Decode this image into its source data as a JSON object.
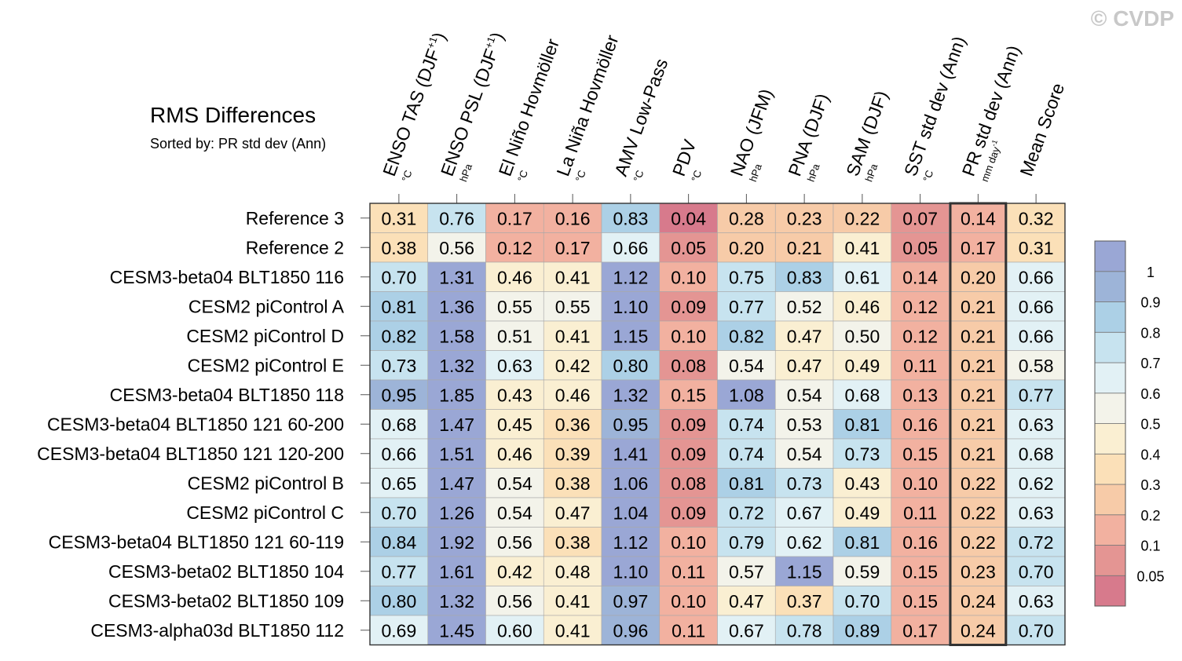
{
  "watermark": "© CVDP",
  "chart_data": {
    "type": "heatmap",
    "title": "RMS Differences",
    "subtitle": "Sorted by: PR std dev (Ann)",
    "columns": [
      {
        "label": "ENSO TAS (DJF",
        "sup": "+1",
        "close": ")",
        "unit": "°C"
      },
      {
        "label": "ENSO PSL (DJF",
        "sup": "+1",
        "close": ")",
        "unit": "hPa"
      },
      {
        "label": "El Niño Hovmöller",
        "unit": "°C"
      },
      {
        "label": "La Niña Hovmöller",
        "unit": "°C"
      },
      {
        "label": "AMV Low-Pass",
        "unit": "°C"
      },
      {
        "label": "PDV",
        "unit": "°C"
      },
      {
        "label": "NAO (JFM)",
        "unit": "hPa"
      },
      {
        "label": "PNA (DJF)",
        "unit": "hPa"
      },
      {
        "label": "SAM (DJF)",
        "unit": "hPa"
      },
      {
        "label": "SST std dev (Ann)",
        "unit": "°C"
      },
      {
        "label": "PR std dev (Ann)",
        "unit": "mm day",
        "unit_sup": "-1"
      },
      {
        "label": "Mean Score",
        "unit": ""
      }
    ],
    "sorted_column": "PR std dev (Ann)",
    "rows": [
      {
        "name": "Reference 3",
        "values": [
          0.31,
          0.76,
          0.17,
          0.16,
          0.83,
          0.04,
          0.28,
          0.23,
          0.22,
          0.07,
          0.14,
          0.32
        ]
      },
      {
        "name": "Reference 2",
        "values": [
          0.38,
          0.56,
          0.12,
          0.17,
          0.66,
          0.05,
          0.2,
          0.21,
          0.41,
          0.05,
          0.17,
          0.31
        ]
      },
      {
        "name": "CESM3-beta04 BLT1850 116",
        "values": [
          0.7,
          1.31,
          0.46,
          0.41,
          1.12,
          0.1,
          0.75,
          0.83,
          0.61,
          0.14,
          0.2,
          0.66
        ]
      },
      {
        "name": "CESM2 piControl A",
        "values": [
          0.81,
          1.36,
          0.55,
          0.55,
          1.1,
          0.09,
          0.77,
          0.52,
          0.46,
          0.12,
          0.21,
          0.66
        ]
      },
      {
        "name": "CESM2 piControl D",
        "values": [
          0.82,
          1.58,
          0.51,
          0.41,
          1.15,
          0.1,
          0.82,
          0.47,
          0.5,
          0.12,
          0.21,
          0.66
        ]
      },
      {
        "name": "CESM2 piControl E",
        "values": [
          0.73,
          1.32,
          0.63,
          0.42,
          0.8,
          0.08,
          0.54,
          0.47,
          0.49,
          0.11,
          0.21,
          0.58
        ]
      },
      {
        "name": "CESM3-beta04 BLT1850 118",
        "values": [
          0.95,
          1.85,
          0.43,
          0.46,
          1.32,
          0.15,
          1.08,
          0.54,
          0.68,
          0.13,
          0.21,
          0.77
        ]
      },
      {
        "name": "CESM3-beta04 BLT1850 121 60-200",
        "values": [
          0.68,
          1.47,
          0.45,
          0.36,
          0.95,
          0.09,
          0.74,
          0.53,
          0.81,
          0.16,
          0.21,
          0.63
        ]
      },
      {
        "name": "CESM3-beta04 BLT1850 121 120-200",
        "values": [
          0.66,
          1.51,
          0.46,
          0.39,
          1.41,
          0.09,
          0.74,
          0.54,
          0.73,
          0.15,
          0.21,
          0.68
        ]
      },
      {
        "name": "CESM2 piControl B",
        "values": [
          0.65,
          1.47,
          0.54,
          0.38,
          1.06,
          0.08,
          0.81,
          0.73,
          0.43,
          0.1,
          0.22,
          0.62
        ]
      },
      {
        "name": "CESM2 piControl C",
        "values": [
          0.7,
          1.26,
          0.54,
          0.47,
          1.04,
          0.09,
          0.72,
          0.67,
          0.49,
          0.11,
          0.22,
          0.63
        ]
      },
      {
        "name": "CESM3-beta04 BLT1850 121 60-119",
        "values": [
          0.84,
          1.92,
          0.56,
          0.38,
          1.12,
          0.1,
          0.79,
          0.62,
          0.81,
          0.16,
          0.22,
          0.72
        ]
      },
      {
        "name": "CESM3-beta02 BLT1850 104",
        "values": [
          0.77,
          1.61,
          0.42,
          0.48,
          1.1,
          0.11,
          0.57,
          1.15,
          0.59,
          0.15,
          0.23,
          0.7
        ]
      },
      {
        "name": "CESM3-beta02 BLT1850 109",
        "values": [
          0.8,
          1.32,
          0.56,
          0.41,
          0.97,
          0.1,
          0.47,
          0.37,
          0.7,
          0.15,
          0.24,
          0.63
        ]
      },
      {
        "name": "CESM3-alpha03d BLT1850 112",
        "values": [
          0.69,
          1.45,
          0.6,
          0.41,
          0.96,
          0.11,
          0.67,
          0.78,
          0.89,
          0.17,
          0.24,
          0.7
        ]
      }
    ],
    "colorbar": {
      "levels": [
        0.05,
        0.1,
        0.2,
        0.3,
        0.4,
        0.5,
        0.6,
        0.7,
        0.8,
        0.9,
        1
      ],
      "level_labels": [
        "0.05",
        "0.1",
        "0.2",
        "0.3",
        "0.4",
        "0.5",
        "0.6",
        "0.7",
        "0.8",
        "0.9",
        "1"
      ],
      "colors": [
        "#d77a8c",
        "#e49593",
        "#f2b1a0",
        "#f7cba8",
        "#fbe0b8",
        "#faefd2",
        "#f3f3ea",
        "#e2f1f5",
        "#c7e3ef",
        "#acd0e6",
        "#9db4d8",
        "#9aa7d5"
      ]
    }
  }
}
